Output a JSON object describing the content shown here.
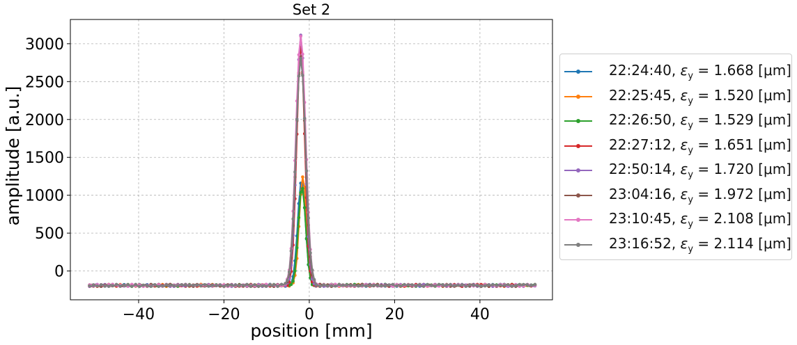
{
  "chart_data": {
    "type": "line",
    "title": "Set 2",
    "xlabel": "position [mm]",
    "ylabel": "amplitude [a.u.]",
    "xlim": [
      -56,
      57
    ],
    "ylim": [
      -380,
      3320
    ],
    "xticks": [
      -40,
      -20,
      0,
      20,
      40
    ],
    "yticks": [
      0,
      500,
      1000,
      1500,
      2000,
      2500,
      3000
    ],
    "grid": true,
    "legend_position": "right, outside plot",
    "baseline": -190,
    "series": [
      {
        "name": "22:24:40, εy = 1.668 [μm]",
        "time": "22:24:40",
        "emittance": "1.668",
        "unit": "[μm]",
        "color": "#1f77b4",
        "peak_x": -1.8,
        "peak_y": 1200,
        "sigma": 0.9
      },
      {
        "name": "22:25:45, εy = 1.520 [μm]",
        "time": "22:25:45",
        "emittance": "1.520",
        "unit": "[μm]",
        "color": "#ff7f0e",
        "peak_x": -1.5,
        "peak_y": 1240,
        "sigma": 0.85
      },
      {
        "name": "22:26:50, εy = 1.529 [μm]",
        "time": "22:26:50",
        "emittance": "1.529",
        "unit": "[μm]",
        "color": "#2ca02c",
        "peak_x": -1.7,
        "peak_y": 1120,
        "sigma": 0.85
      },
      {
        "name": "22:27:12, εy = 1.651 [μm]",
        "time": "22:27:12",
        "emittance": "1.651",
        "unit": "[μm]",
        "color": "#d62728",
        "peak_x": -2.0,
        "peak_y": 2950,
        "sigma": 0.95
      },
      {
        "name": "22:50:14, εy = 1.720 [μm]",
        "time": "22:50:14",
        "emittance": "1.720",
        "unit": "[μm]",
        "color": "#9467bd",
        "peak_x": -2.0,
        "peak_y": 3120,
        "sigma": 1.0
      },
      {
        "name": "23:04:16, εy = 1.972 [μm]",
        "time": "23:04:16",
        "emittance": "1.972",
        "unit": "[μm]",
        "color": "#8c564b",
        "peak_x": -2.0,
        "peak_y": 2850,
        "sigma": 1.1
      },
      {
        "name": "23:10:45, εy = 2.108 [μm]",
        "time": "23:10:45",
        "emittance": "2.108",
        "unit": "[μm]",
        "color": "#e377c2",
        "peak_x": -2.0,
        "peak_y": 3100,
        "sigma": 1.15
      },
      {
        "name": "23:16:52, εy = 2.114 [μm]",
        "time": "23:16:52",
        "emittance": "2.114",
        "unit": "[μm]",
        "color": "#7f7f7f",
        "peak_x": -2.0,
        "peak_y": 2800,
        "sigma": 1.15
      }
    ],
    "x_range": [
      -51.5,
      53.0
    ]
  }
}
